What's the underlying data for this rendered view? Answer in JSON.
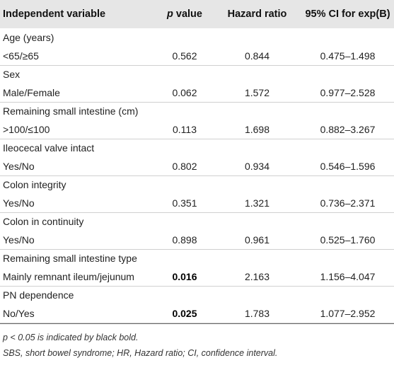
{
  "table": {
    "headers": {
      "variable": "Independent variable",
      "p_italic": "p",
      "p_rest": " value",
      "hazard": "Hazard ratio",
      "ci": "95% CI for exp(B)"
    },
    "rows": [
      {
        "group": "Age (years)",
        "label": "<65/≥65",
        "p": "0.562",
        "hr": "0.844",
        "ci": "0.475–1.498",
        "p_bold": false
      },
      {
        "group": "Sex",
        "label": "Male/Female",
        "p": "0.062",
        "hr": "1.572",
        "ci": "0.977–2.528",
        "p_bold": false
      },
      {
        "group": "Remaining small intestine (cm)",
        "label": ">100/≤100",
        "p": "0.113",
        "hr": "1.698",
        "ci": "0.882–3.267",
        "p_bold": false
      },
      {
        "group": "Ileocecal valve intact",
        "label": "Yes/No",
        "p": "0.802",
        "hr": "0.934",
        "ci": "0.546–1.596",
        "p_bold": false
      },
      {
        "group": "Colon integrity",
        "label": "Yes/No",
        "p": "0.351",
        "hr": "1.321",
        "ci": "0.736–2.371",
        "p_bold": false
      },
      {
        "group": "Colon in continuity",
        "label": "Yes/No",
        "p": "0.898",
        "hr": "0.961",
        "ci": "0.525–1.760",
        "p_bold": false
      },
      {
        "group": "Remaining small intestine type",
        "label": "Mainly remnant ileum/jejunum",
        "p": "0.016",
        "hr": "2.163",
        "ci": "1.156–4.047",
        "p_bold": true
      },
      {
        "group": "PN dependence",
        "label": "No/Yes",
        "p": "0.025",
        "hr": "1.783",
        "ci": "1.077–2.952",
        "p_bold": true
      }
    ]
  },
  "notes": {
    "note1": "p < 0.05 is indicated by black bold.",
    "note2": "SBS, short bowel syndrome; HR, Hazard ratio; CI, confidence interval."
  }
}
